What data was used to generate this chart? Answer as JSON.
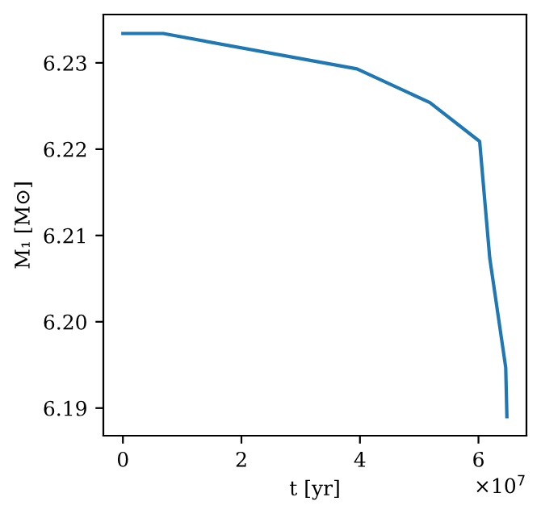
{
  "chart_data": {
    "type": "line",
    "xlabel": "t [yr]",
    "ylabel": "M₁ [M⊙]",
    "x": [
      0,
      0.68,
      3.95,
      5.18,
      6.02,
      6.19,
      6.46,
      6.48
    ],
    "series": [
      {
        "color": "#1f77b4",
        "values": [
          6.2334,
          6.2334,
          6.2293,
          6.2254,
          6.2209,
          6.2074,
          6.1947,
          6.189
        ]
      }
    ],
    "xlim": [
      -0.33,
      6.81
    ],
    "ylim": [
      6.1868,
      6.2356
    ],
    "xticks": [
      0,
      2,
      4,
      6
    ],
    "yticks": [
      {
        "value": 6.19,
        "label": "6.19"
      },
      {
        "value": 6.2,
        "label": "6.20"
      },
      {
        "value": 6.21,
        "label": "6.21"
      },
      {
        "value": 6.22,
        "label": "6.22"
      },
      {
        "value": 6.23,
        "label": "6.23"
      }
    ],
    "annotations": [
      "×10$^{7}$"
    ],
    "grid": false,
    "legend": false,
    "line_style": "solid",
    "marker": "none"
  }
}
